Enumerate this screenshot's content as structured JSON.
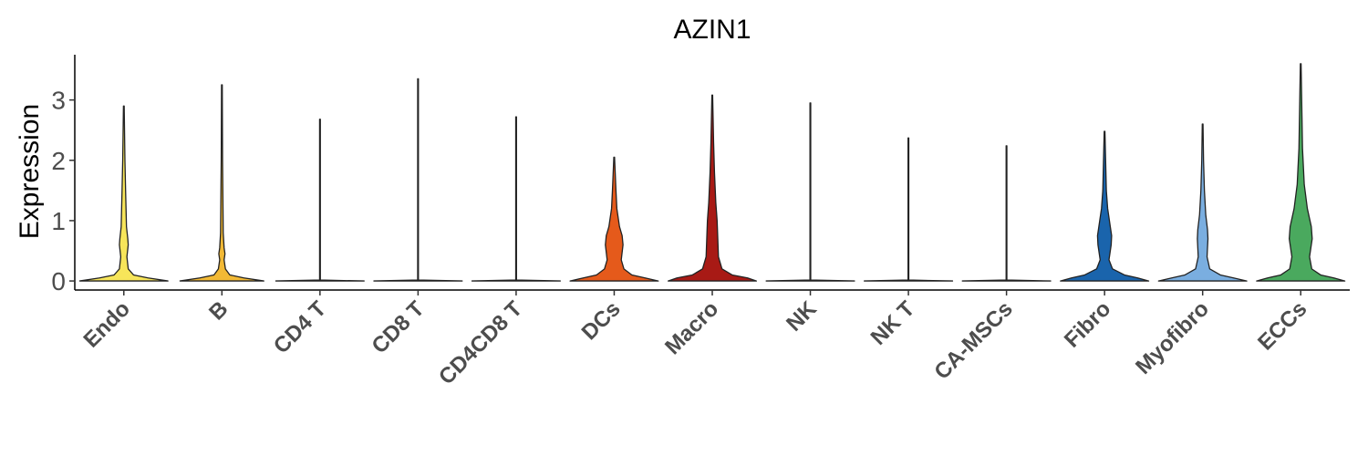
{
  "chart_data": {
    "type": "violin",
    "title": "AZIN1",
    "xlabel": "",
    "ylabel": "Expression",
    "ylim": [
      -0.15,
      3.75
    ],
    "yticks": [
      0,
      1,
      2,
      3
    ],
    "grid": false,
    "legend": "none",
    "categories": [
      "Endo",
      "B",
      "CD4 T",
      "CD8 T",
      "CD4CD8 T",
      "DCs",
      "Macro",
      "NK",
      "NK T",
      "CA-MSCs",
      "Fibro",
      "Myofibro",
      "ECCs"
    ],
    "series": [
      {
        "category": "Endo",
        "color": "#f7e55a",
        "max": 2.9,
        "density": [
          [
            0,
            1.0
          ],
          [
            0.05,
            0.55
          ],
          [
            0.1,
            0.22
          ],
          [
            0.2,
            0.1
          ],
          [
            0.4,
            0.07
          ],
          [
            0.6,
            0.1
          ],
          [
            0.7,
            0.09
          ],
          [
            0.9,
            0.06
          ],
          [
            1.2,
            0.05
          ],
          [
            1.5,
            0.04
          ],
          [
            2.0,
            0.025
          ],
          [
            2.9,
            0
          ]
        ]
      },
      {
        "category": "B",
        "color": "#f2b935",
        "max": 3.25,
        "density": [
          [
            0,
            0.95
          ],
          [
            0.05,
            0.5
          ],
          [
            0.1,
            0.18
          ],
          [
            0.2,
            0.08
          ],
          [
            0.35,
            0.05
          ],
          [
            0.45,
            0.07
          ],
          [
            0.55,
            0.05
          ],
          [
            0.8,
            0.03
          ],
          [
            1.2,
            0.025
          ],
          [
            2.0,
            0.015
          ],
          [
            3.25,
            0
          ]
        ]
      },
      {
        "category": "CD4 T",
        "color": "#ffffff",
        "max": 2.68,
        "density": [
          [
            0,
            1.0
          ],
          [
            0.015,
            0
          ],
          [
            2.68,
            0
          ]
        ]
      },
      {
        "category": "CD8 T",
        "color": "#ffffff",
        "max": 3.35,
        "density": [
          [
            0,
            1.0
          ],
          [
            0.015,
            0
          ],
          [
            3.35,
            0
          ]
        ]
      },
      {
        "category": "CD4CD8 T",
        "color": "#ffffff",
        "max": 2.72,
        "density": [
          [
            0,
            1.0
          ],
          [
            0.015,
            0
          ],
          [
            2.72,
            0
          ]
        ]
      },
      {
        "category": "DCs",
        "color": "#e55a1b",
        "max": 2.05,
        "density": [
          [
            0,
            1.0
          ],
          [
            0.05,
            0.7
          ],
          [
            0.1,
            0.4
          ],
          [
            0.2,
            0.22
          ],
          [
            0.35,
            0.16
          ],
          [
            0.6,
            0.2
          ],
          [
            0.75,
            0.18
          ],
          [
            0.9,
            0.12
          ],
          [
            1.2,
            0.06
          ],
          [
            1.5,
            0.04
          ],
          [
            2.05,
            0
          ]
        ]
      },
      {
        "category": "Macro",
        "color": "#a81a15",
        "max": 3.08,
        "density": [
          [
            0,
            1.0
          ],
          [
            0.05,
            0.8
          ],
          [
            0.1,
            0.45
          ],
          [
            0.2,
            0.22
          ],
          [
            0.4,
            0.14
          ],
          [
            0.8,
            0.12
          ],
          [
            1.0,
            0.11
          ],
          [
            1.3,
            0.08
          ],
          [
            1.8,
            0.05
          ],
          [
            2.3,
            0.03
          ],
          [
            3.08,
            0
          ]
        ]
      },
      {
        "category": "NK",
        "color": "#ffffff",
        "max": 2.95,
        "density": [
          [
            0,
            1.0
          ],
          [
            0.015,
            0
          ],
          [
            2.95,
            0
          ]
        ]
      },
      {
        "category": "NK T",
        "color": "#ffffff",
        "max": 2.37,
        "density": [
          [
            0,
            1.0
          ],
          [
            0.015,
            0
          ],
          [
            2.37,
            0
          ]
        ]
      },
      {
        "category": "CA-MSCs",
        "color": "#ffffff",
        "max": 2.24,
        "density": [
          [
            0,
            1.0
          ],
          [
            0.015,
            0
          ],
          [
            2.24,
            0
          ]
        ]
      },
      {
        "category": "Fibro",
        "color": "#1a64ac",
        "max": 2.48,
        "density": [
          [
            0,
            1.0
          ],
          [
            0.05,
            0.75
          ],
          [
            0.1,
            0.45
          ],
          [
            0.2,
            0.18
          ],
          [
            0.35,
            0.1
          ],
          [
            0.6,
            0.15
          ],
          [
            0.75,
            0.16
          ],
          [
            0.9,
            0.13
          ],
          [
            1.2,
            0.07
          ],
          [
            1.5,
            0.04
          ],
          [
            2.48,
            0
          ]
        ]
      },
      {
        "category": "Myofibro",
        "color": "#7aaee0",
        "max": 2.6,
        "density": [
          [
            0,
            1.0
          ],
          [
            0.05,
            0.7
          ],
          [
            0.1,
            0.4
          ],
          [
            0.2,
            0.16
          ],
          [
            0.4,
            0.1
          ],
          [
            0.7,
            0.12
          ],
          [
            0.85,
            0.11
          ],
          [
            1.1,
            0.07
          ],
          [
            1.5,
            0.04
          ],
          [
            2.0,
            0.02
          ],
          [
            2.6,
            0
          ]
        ]
      },
      {
        "category": "ECCs",
        "color": "#4aa95e",
        "max": 3.6,
        "density": [
          [
            0,
            1.0
          ],
          [
            0.05,
            0.75
          ],
          [
            0.1,
            0.45
          ],
          [
            0.2,
            0.25
          ],
          [
            0.4,
            0.2
          ],
          [
            0.7,
            0.26
          ],
          [
            0.9,
            0.24
          ],
          [
            1.2,
            0.15
          ],
          [
            1.6,
            0.08
          ],
          [
            2.2,
            0.04
          ],
          [
            3.6,
            0
          ]
        ]
      }
    ]
  }
}
